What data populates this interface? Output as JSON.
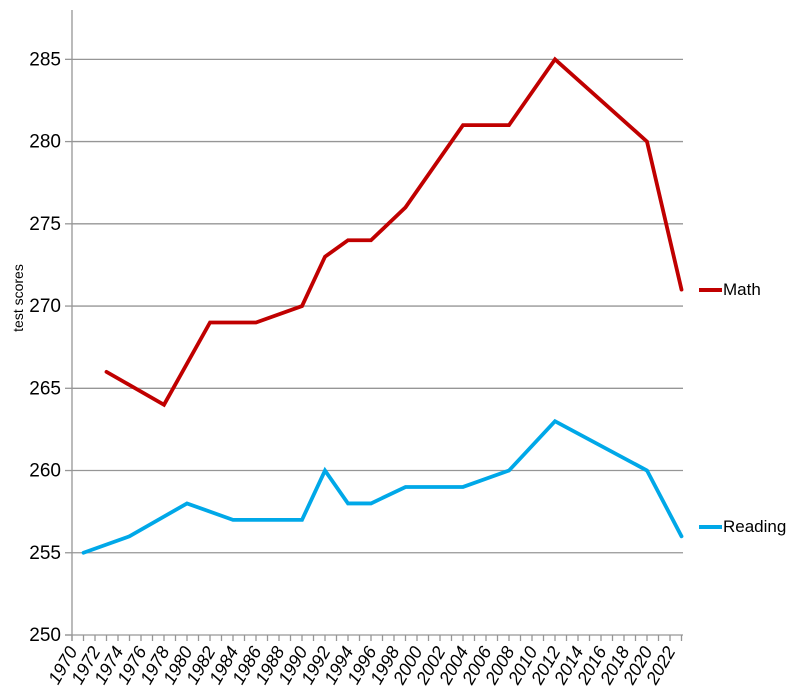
{
  "chart_data": {
    "type": "line",
    "title": "",
    "xlabel": "",
    "ylabel": "test scores",
    "ylim": [
      250,
      288
    ],
    "yticks": [
      250,
      255,
      260,
      265,
      270,
      275,
      280,
      285
    ],
    "xlim": [
      1970,
      2023
    ],
    "xtick_minor_step": 1,
    "xtick_label_years": [
      1970,
      1972,
      1974,
      1976,
      1978,
      1980,
      1982,
      1984,
      1986,
      1988,
      1990,
      1992,
      1994,
      1996,
      1998,
      2000,
      2002,
      2004,
      2006,
      2008,
      2010,
      2012,
      2014,
      2016,
      2018,
      2020,
      2022
    ],
    "grid": "horizontal",
    "legend_position": "right-of-line-ends",
    "series": [
      {
        "name": "Math",
        "color": "#C00000",
        "points": [
          [
            1973,
            266
          ],
          [
            1978,
            264
          ],
          [
            1982,
            269
          ],
          [
            1986,
            269
          ],
          [
            1990,
            270
          ],
          [
            1992,
            273
          ],
          [
            1994,
            274
          ],
          [
            1996,
            274
          ],
          [
            1999,
            276
          ],
          [
            2004,
            281
          ],
          [
            2008,
            281
          ],
          [
            2012,
            285
          ],
          [
            2020,
            280
          ],
          [
            2023,
            271
          ]
        ]
      },
      {
        "name": "Reading",
        "color": "#00A8E8",
        "points": [
          [
            1971,
            255
          ],
          [
            1975,
            256
          ],
          [
            1980,
            258
          ],
          [
            1984,
            257
          ],
          [
            1988,
            257
          ],
          [
            1990,
            257
          ],
          [
            1992,
            260
          ],
          [
            1994,
            258
          ],
          [
            1996,
            258
          ],
          [
            1999,
            259
          ],
          [
            2004,
            259
          ],
          [
            2008,
            260
          ],
          [
            2012,
            263
          ],
          [
            2020,
            260
          ],
          [
            2023,
            256
          ]
        ]
      }
    ]
  },
  "colors": {
    "background": "#FFFFFF",
    "grid": "#969696",
    "axis": "#969696",
    "text": "#000000",
    "math_line": "#C00000",
    "reading_line": "#00A8E8"
  }
}
